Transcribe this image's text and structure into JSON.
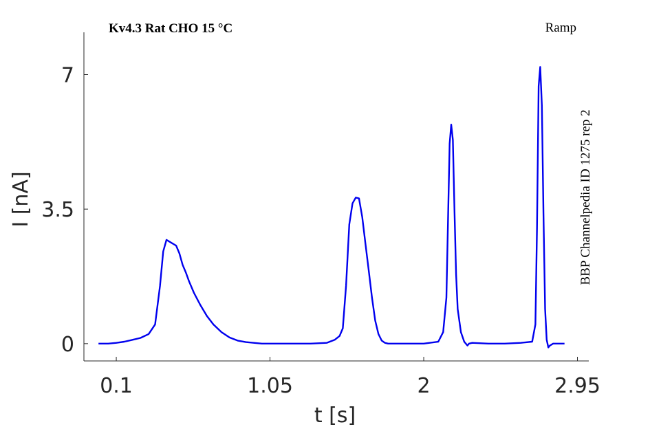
{
  "chart_data": {
    "type": "line",
    "title": "Kv4.3  Rat  CHO  15 °C",
    "protocol_label": "Ramp",
    "side_label": "BBP Channelpedia ID 1275 rep 2",
    "xlabel": "t [s]",
    "ylabel": "I [nA]",
    "xlim": [
      -0.1,
      3.02
    ],
    "ylim": [
      -0.45,
      8.1
    ],
    "x_ticks": [
      0.1,
      1.05,
      2,
      2.95
    ],
    "x_tick_labels": [
      "0.1",
      "1.05",
      "2",
      "2.95"
    ],
    "y_ticks": [
      0,
      3.5,
      7
    ],
    "y_tick_labels": [
      "0",
      "3.5",
      "7"
    ],
    "grid": false,
    "legend": "none",
    "series": [
      {
        "color": "#0000ee",
        "x": [
          -0.01,
          0.05,
          0.1,
          0.15,
          0.2,
          0.25,
          0.3,
          0.34,
          0.37,
          0.39,
          0.41,
          0.43,
          0.45,
          0.47,
          0.49,
          0.51,
          0.53,
          0.55,
          0.58,
          0.62,
          0.66,
          0.7,
          0.75,
          0.8,
          0.85,
          0.9,
          0.95,
          1.0,
          1.05,
          1.1,
          1.2,
          1.3,
          1.4,
          1.45,
          1.48,
          1.5,
          1.52,
          1.54,
          1.56,
          1.58,
          1.6,
          1.62,
          1.64,
          1.66,
          1.68,
          1.7,
          1.72,
          1.74,
          1.76,
          1.78,
          1.8,
          1.9,
          2.0,
          2.09,
          2.12,
          2.14,
          2.16,
          2.17,
          2.18,
          2.19,
          2.2,
          2.21,
          2.23,
          2.25,
          2.26,
          2.27,
          2.28,
          2.3,
          2.4,
          2.5,
          2.6,
          2.67,
          2.69,
          2.7,
          2.71,
          2.72,
          2.73,
          2.74,
          2.75,
          2.76,
          2.77,
          2.78,
          2.8,
          2.82,
          2.87
        ],
        "y": [
          0.0,
          0.0,
          0.02,
          0.05,
          0.1,
          0.15,
          0.25,
          0.5,
          1.5,
          2.4,
          2.7,
          2.65,
          2.6,
          2.55,
          2.35,
          2.05,
          1.85,
          1.62,
          1.32,
          1.0,
          0.72,
          0.5,
          0.3,
          0.16,
          0.08,
          0.04,
          0.02,
          0.0,
          0.0,
          0.0,
          0.0,
          0.0,
          0.02,
          0.1,
          0.2,
          0.4,
          1.5,
          3.1,
          3.65,
          3.8,
          3.78,
          3.3,
          2.6,
          1.9,
          1.2,
          0.6,
          0.25,
          0.08,
          0.02,
          0.0,
          0.0,
          0.0,
          0.0,
          0.05,
          0.3,
          1.2,
          5.2,
          5.7,
          5.3,
          3.5,
          1.8,
          0.9,
          0.3,
          0.05,
          0.0,
          -0.05,
          0.0,
          0.02,
          0.0,
          0.0,
          0.02,
          0.05,
          0.5,
          3.0,
          6.7,
          7.2,
          6.2,
          3.4,
          0.9,
          0.1,
          -0.1,
          -0.05,
          0.0,
          0.0,
          0.0
        ]
      }
    ]
  }
}
